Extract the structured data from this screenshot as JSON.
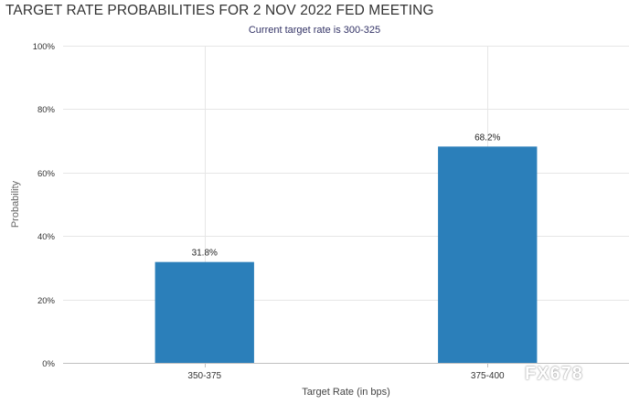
{
  "chart_data": {
    "type": "bar",
    "title": "TARGET RATE PROBABILITIES FOR 2 NOV 2022 FED MEETING",
    "subtitle": "Current target rate is 300-325",
    "xlabel": "Target Rate (in bps)",
    "ylabel": "Probability",
    "categories": [
      "350-375",
      "375-400"
    ],
    "values": [
      31.8,
      68.2
    ],
    "data_labels": [
      "31.8%",
      "68.2%"
    ],
    "ylim": [
      0,
      100
    ],
    "yticks": [
      0,
      20,
      40,
      60,
      80,
      100
    ],
    "ytick_labels": [
      "0%",
      "20%",
      "40%",
      "60%",
      "80%",
      "100%"
    ],
    "grid": true,
    "bar_color": "#2b7fba"
  },
  "watermark": "FX678"
}
